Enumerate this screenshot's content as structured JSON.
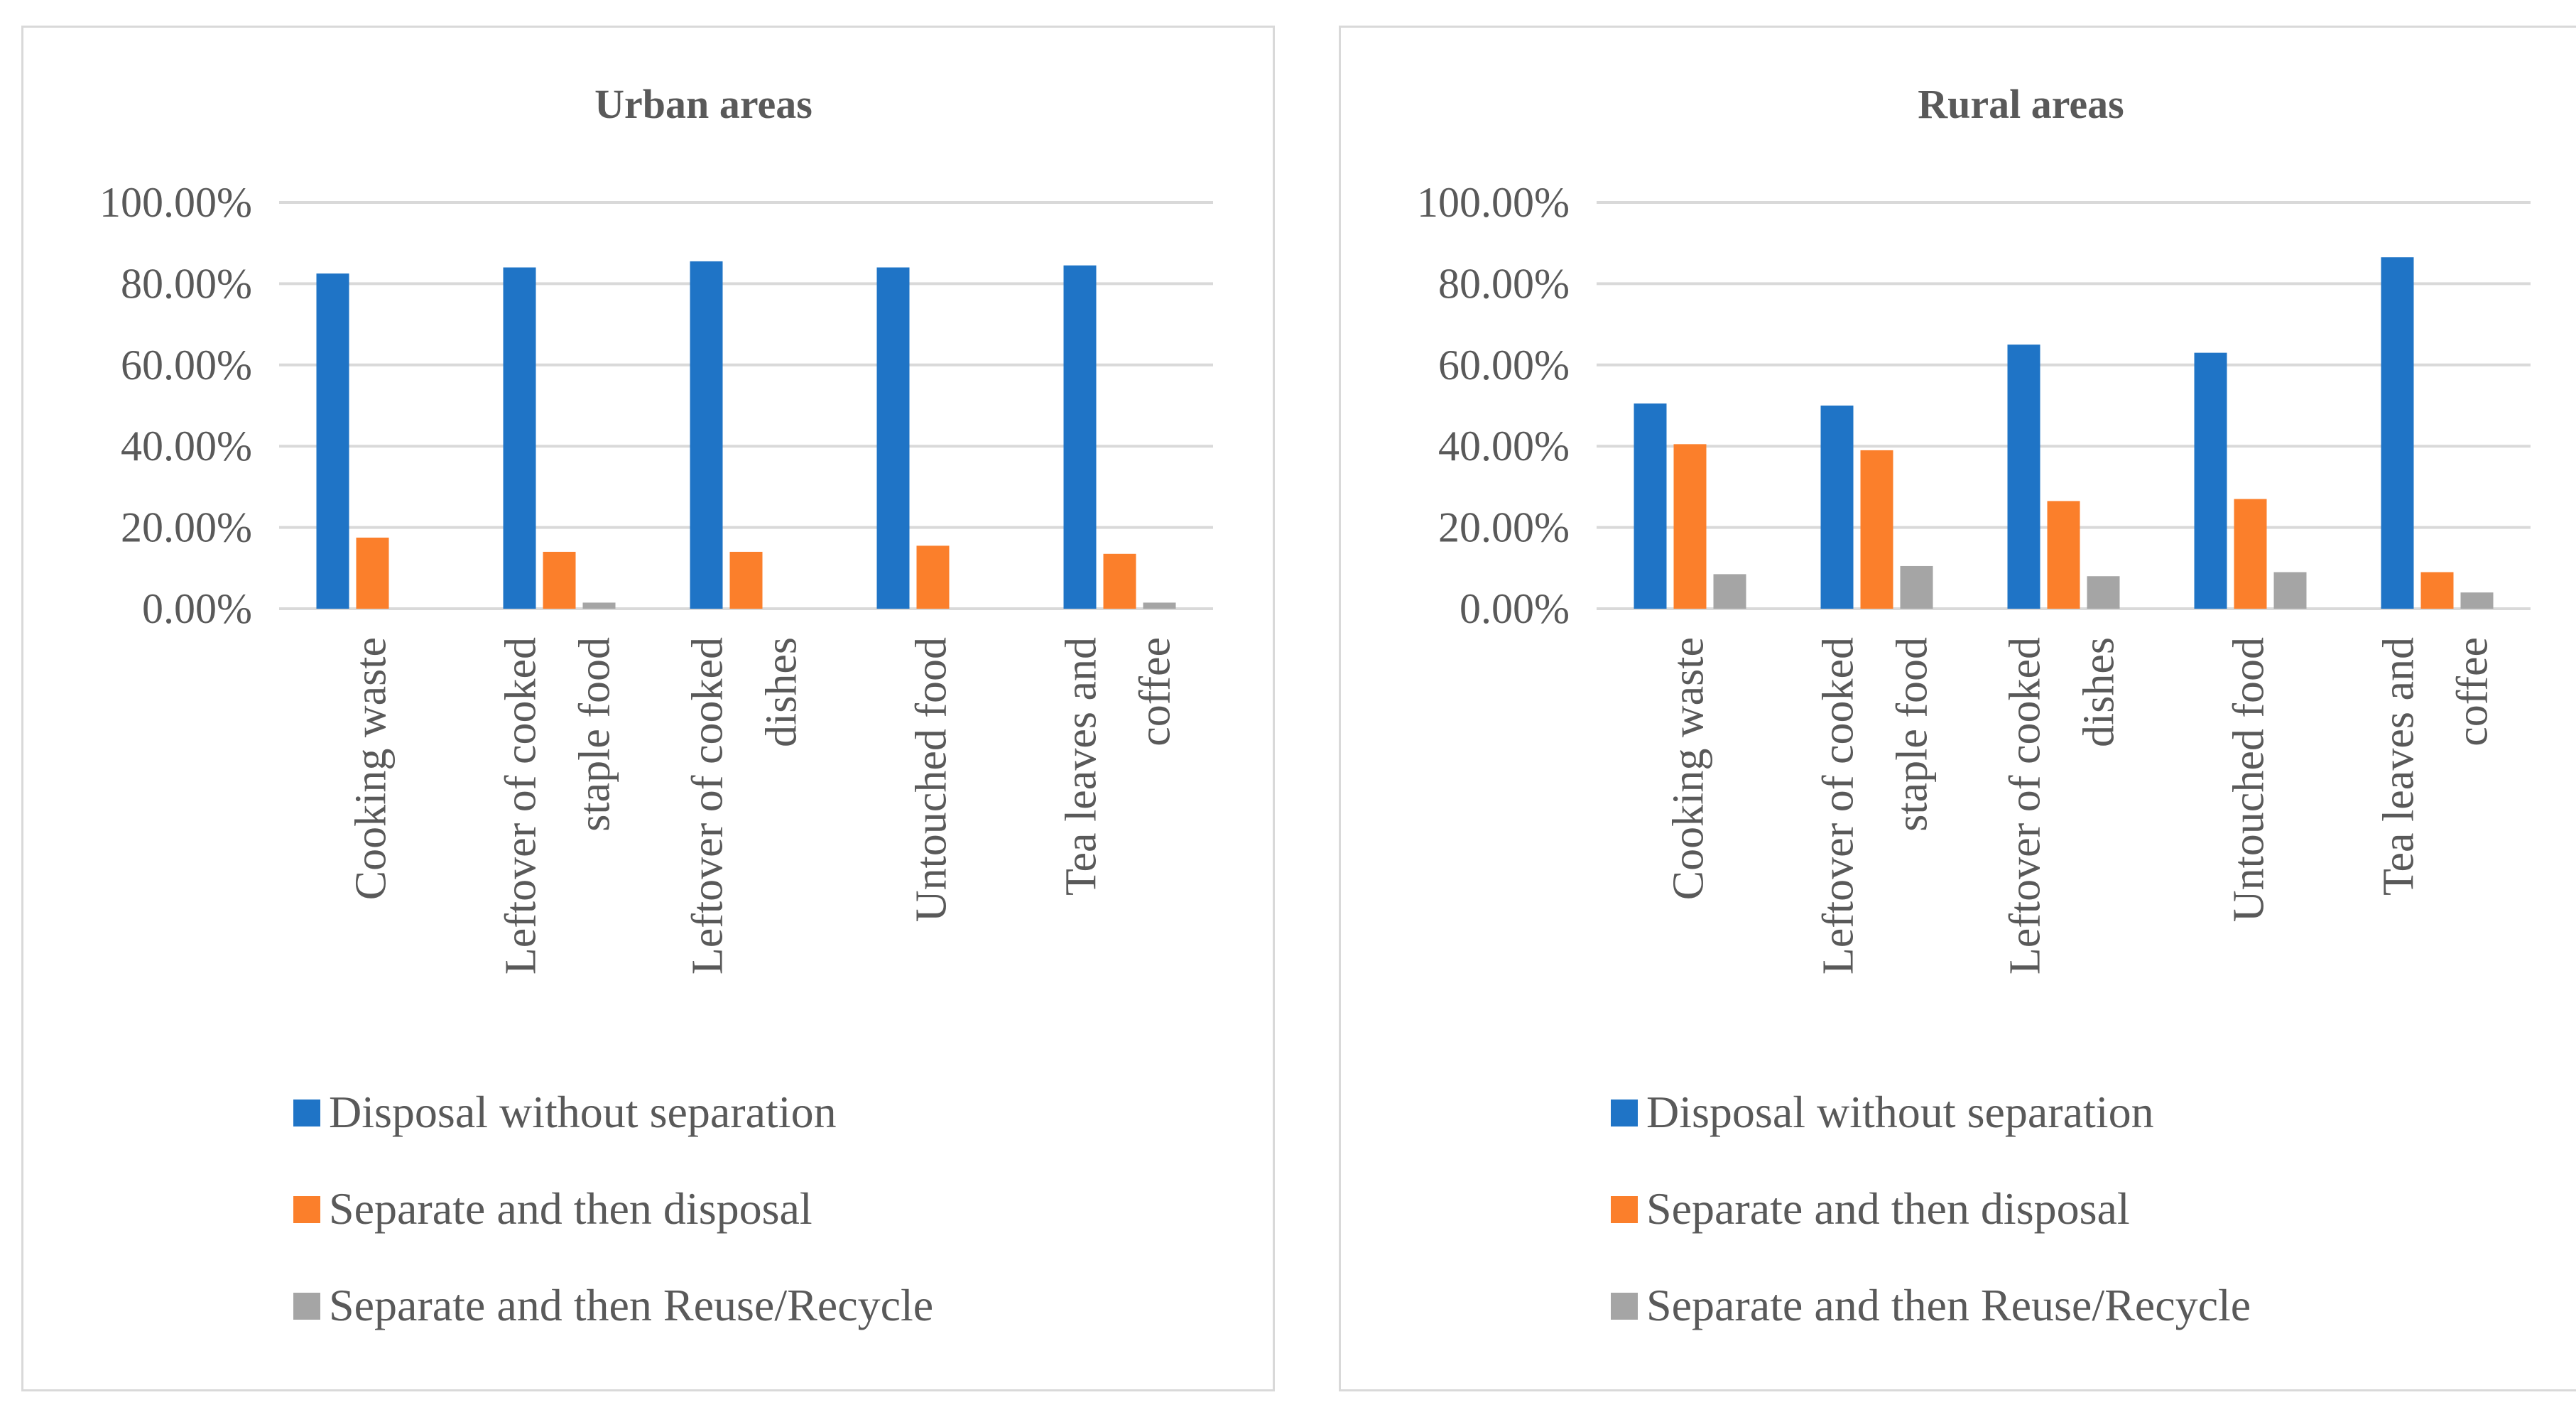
{
  "colors": {
    "disposal": "#1f74c6",
    "separate": "#fb7f2b",
    "reuse": "#a5a5a5",
    "gridline": "#d9d9d9",
    "text": "#595959"
  },
  "chart_data": [
    {
      "type": "bar",
      "title": "Urban areas",
      "categories": [
        [
          "Cooking waste"
        ],
        [
          "Leftover of cooked",
          "staple food"
        ],
        [
          "Leftover of cooked",
          "dishes"
        ],
        [
          "Untouched food"
        ],
        [
          "Tea leaves and",
          "coffee"
        ]
      ],
      "series": [
        {
          "name": "Disposal without separation",
          "color_key": "disposal",
          "values": [
            82.5,
            84.0,
            85.5,
            84.0,
            84.5
          ]
        },
        {
          "name": "Separate and then disposal",
          "color_key": "separate",
          "values": [
            17.5,
            14.0,
            14.0,
            15.5,
            13.5
          ]
        },
        {
          "name": "Separate and then Reuse/Recycle",
          "color_key": "reuse",
          "values": [
            0.0,
            1.5,
            0.0,
            0.0,
            1.5
          ]
        }
      ],
      "ylim": [
        0,
        100
      ],
      "yticks": [
        "0.00%",
        "20.00%",
        "40.00%",
        "60.00%",
        "80.00%",
        "100.00%"
      ],
      "legend_position": "bottom",
      "grid": true
    },
    {
      "type": "bar",
      "title": "Rural areas",
      "categories": [
        [
          "Cooking waste"
        ],
        [
          "Leftover of cooked",
          "staple food"
        ],
        [
          "Leftover of cooked",
          "dishes"
        ],
        [
          "Untouched food"
        ],
        [
          "Tea leaves and",
          "coffee"
        ]
      ],
      "series": [
        {
          "name": "Disposal without separation",
          "color_key": "disposal",
          "values": [
            50.5,
            50.0,
            65.0,
            63.0,
            86.5
          ]
        },
        {
          "name": "Separate and then disposal",
          "color_key": "separate",
          "values": [
            40.5,
            39.0,
            26.5,
            27.0,
            9.0
          ]
        },
        {
          "name": "Separate and then Reuse/Recycle",
          "color_key": "reuse",
          "values": [
            8.5,
            10.5,
            8.0,
            9.0,
            4.0
          ]
        }
      ],
      "ylim": [
        0,
        100
      ],
      "yticks": [
        "0.00%",
        "20.00%",
        "40.00%",
        "60.00%",
        "80.00%",
        "100.00%"
      ],
      "legend_position": "bottom",
      "grid": true
    }
  ]
}
